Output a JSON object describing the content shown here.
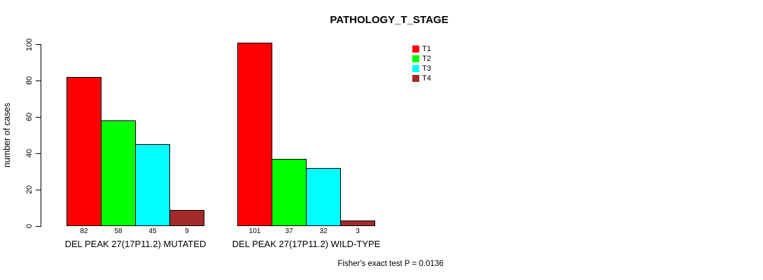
{
  "title": "PATHOLOGY_T_STAGE",
  "footer": "Fisher's exact test P = 0.0136",
  "y_axis": {
    "label": "number of cases",
    "ticks": [
      0,
      20,
      40,
      60,
      80,
      100
    ],
    "range": [
      0,
      100
    ]
  },
  "legend": {
    "position": "top-right",
    "items": [
      {
        "label": "T1",
        "color": "#FF0000"
      },
      {
        "label": "T2",
        "color": "#00FF00"
      },
      {
        "label": "T3",
        "color": "#00FFFF"
      },
      {
        "label": "T4",
        "color": "#A52A2A"
      }
    ]
  },
  "chart_data": {
    "type": "bar",
    "title": "PATHOLOGY_T_STAGE",
    "ylabel": "number of cases",
    "ylim": [
      0,
      100
    ],
    "grid": false,
    "legend_position": "top-right",
    "categories": [
      "DEL PEAK 27(17P11.2) MUTATED",
      "DEL PEAK 27(17P11.2) WILD-TYPE"
    ],
    "series": [
      {
        "name": "T1",
        "color": "#FF0000",
        "values": [
          82,
          101
        ]
      },
      {
        "name": "T2",
        "color": "#00FF00",
        "values": [
          58,
          37
        ]
      },
      {
        "name": "T3",
        "color": "#00FFFF",
        "values": [
          45,
          32
        ]
      },
      {
        "name": "T4",
        "color": "#A52A2A",
        "values": [
          9,
          3
        ]
      }
    ],
    "bar_value_labels": [
      [
        82,
        58,
        45,
        9
      ],
      [
        101,
        37,
        32,
        3
      ]
    ],
    "annotation": "Fisher's exact test P = 0.0136"
  }
}
